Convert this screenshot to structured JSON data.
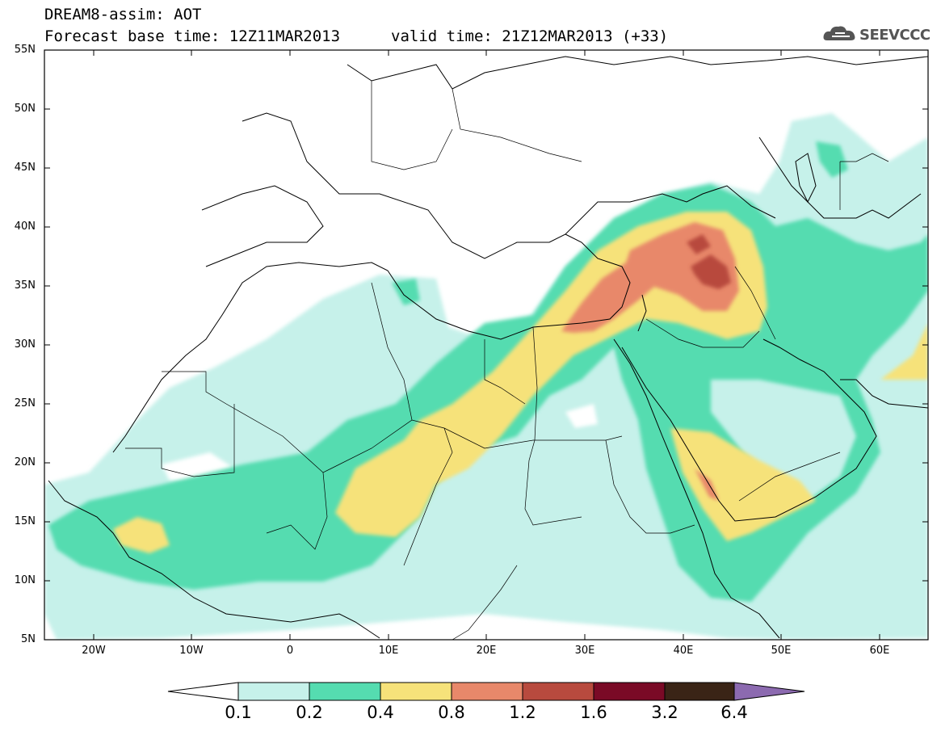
{
  "title": {
    "line1": "DREAM8-assim: AOT",
    "base_time": "Forecast base time: 12Z11MAR2013",
    "valid_time": "valid time: 21Z12MAR2013 (+33)"
  },
  "logo": {
    "text": "SEEVCCC",
    "icon": "cloud-logo-icon"
  },
  "axes": {
    "lat_labels": [
      "55N",
      "50N",
      "45N",
      "40N",
      "35N",
      "30N",
      "25N",
      "20N",
      "15N",
      "10N",
      "5N"
    ],
    "lon_labels": [
      "20W",
      "10W",
      "0",
      "10E",
      "20E",
      "30E",
      "40E",
      "50E",
      "60E"
    ],
    "lat_range": [
      5,
      55
    ],
    "lon_range": [
      -25,
      65
    ]
  },
  "colorbar": {
    "labels": [
      "0.1",
      "0.2",
      "0.4",
      "0.8",
      "1.2",
      "1.6",
      "3.2",
      "6.4"
    ],
    "colors": [
      "#ffffff",
      "#c6f1ea",
      "#55dcb0",
      "#f6e27a",
      "#e8886a",
      "#b84a3e",
      "#7a0a26",
      "#3a2416",
      "#8c6ab0"
    ]
  }
}
